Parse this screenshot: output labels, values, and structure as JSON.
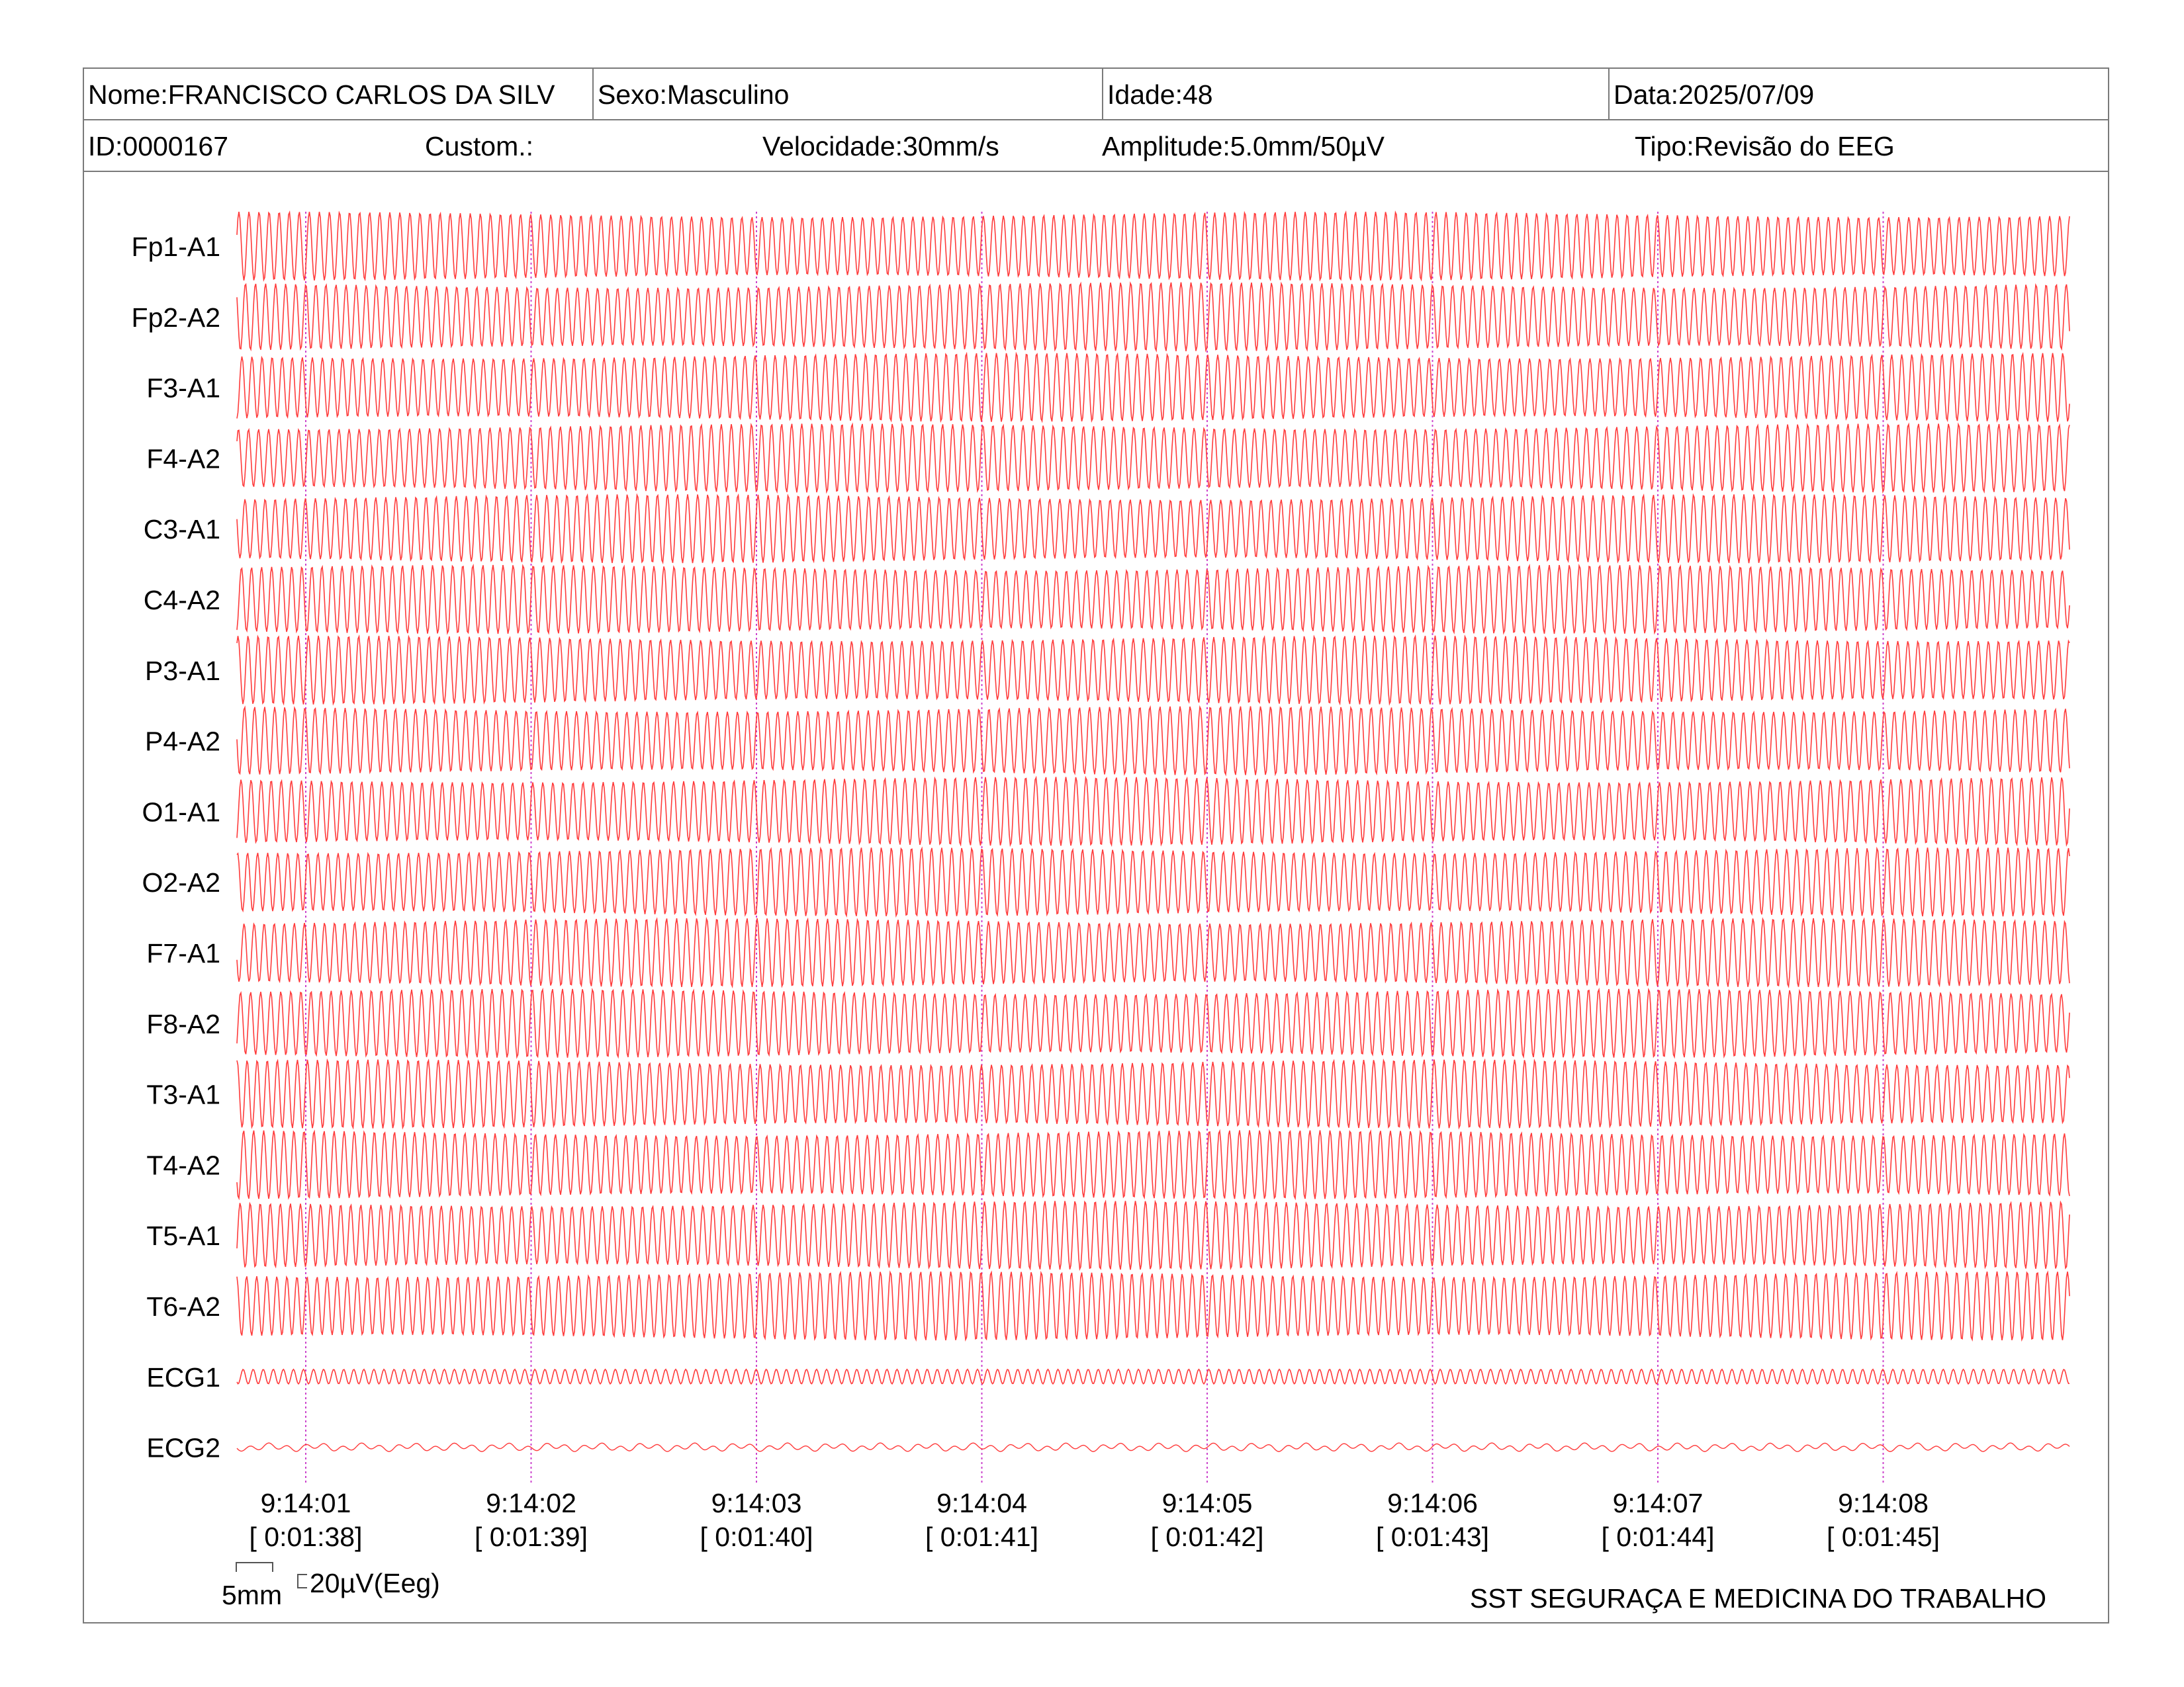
{
  "header": {
    "nome": "Nome:FRANCISCO CARLOS DA SILV",
    "sexo": "Sexo:Masculino",
    "idade": "Idade:48",
    "data": "Data:2025/07/09",
    "id": "ID:0000167",
    "custom": "Custom.:",
    "velocidade": "Velocidade:30mm/s",
    "amplitude": "Amplitude:5.0mm/50µV",
    "tipo": "Tipo:Revisão do EEG"
  },
  "channels": [
    {
      "label": "Fp1-A1",
      "kind": "eeg"
    },
    {
      "label": "Fp2-A2",
      "kind": "eeg"
    },
    {
      "label": "F3-A1",
      "kind": "eeg"
    },
    {
      "label": "F4-A2",
      "kind": "eeg"
    },
    {
      "label": "C3-A1",
      "kind": "eeg"
    },
    {
      "label": "C4-A2",
      "kind": "eeg"
    },
    {
      "label": "P3-A1",
      "kind": "eeg"
    },
    {
      "label": "P4-A2",
      "kind": "eeg"
    },
    {
      "label": "O1-A1",
      "kind": "eeg"
    },
    {
      "label": "O2-A2",
      "kind": "eeg"
    },
    {
      "label": "F7-A1",
      "kind": "eeg"
    },
    {
      "label": "F8-A2",
      "kind": "eeg"
    },
    {
      "label": "T3-A1",
      "kind": "eeg"
    },
    {
      "label": "T4-A2",
      "kind": "eeg"
    },
    {
      "label": "T5-A1",
      "kind": "eeg"
    },
    {
      "label": "T6-A2",
      "kind": "eeg"
    },
    {
      "label": "ECG1",
      "kind": "ecg1"
    },
    {
      "label": "ECG2",
      "kind": "ecg2"
    }
  ],
  "time_marks": [
    {
      "clock": "9:14:01",
      "elapsed": "[ 0:01:38]"
    },
    {
      "clock": "9:14:02",
      "elapsed": "[ 0:01:39]"
    },
    {
      "clock": "9:14:03",
      "elapsed": "[ 0:01:40]"
    },
    {
      "clock": "9:14:04",
      "elapsed": "[ 0:01:41]"
    },
    {
      "clock": "9:14:05",
      "elapsed": "[ 0:01:42]"
    },
    {
      "clock": "9:14:06",
      "elapsed": "[ 0:01:43]"
    },
    {
      "clock": "9:14:07",
      "elapsed": "[ 0:01:44]"
    },
    {
      "clock": "9:14:08",
      "elapsed": "[ 0:01:45]"
    }
  ],
  "scale": {
    "time_label": "5mm",
    "amp_label": "20µV(Eeg)"
  },
  "footer": "SST SEGURAÇA E MEDICINA DO TRABALHO",
  "colors": {
    "trace": "#ff3b3b",
    "marker": "#cc44cc",
    "border": "#7a7a7a"
  }
}
